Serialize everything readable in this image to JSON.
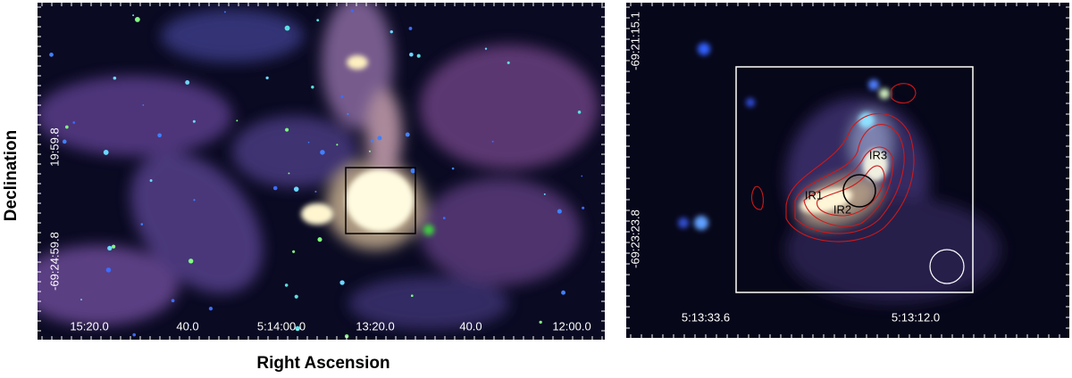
{
  "figure": {
    "y_axis_label": "Declination",
    "x_axis_label": "Right Ascension",
    "left_panel": {
      "x_tick_labels": [
        "15:20.0",
        "40.0",
        "5:14:00.0",
        "13:20.0",
        "40.0",
        "12:00.0"
      ],
      "y_tick_labels": [
        "19:59.8",
        "-69:24:59.8"
      ]
    },
    "right_panel": {
      "x_tick_labels": [
        "5:13:33.6",
        "5:13:12.0"
      ],
      "y_tick_labels": [
        "-69:21:15.1",
        "-69:23:23.8"
      ],
      "source_labels": [
        "IR1",
        "IR2",
        "IR3"
      ]
    }
  }
}
